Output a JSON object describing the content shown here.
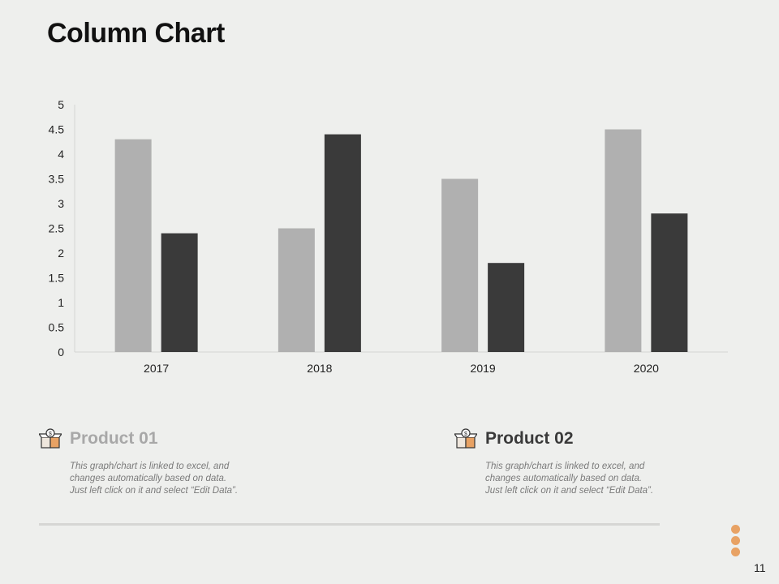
{
  "slide": {
    "title": "Column Chart",
    "page_number": "11"
  },
  "chart_data": {
    "type": "bar",
    "categories": [
      "2017",
      "2018",
      "2019",
      "2020"
    ],
    "series": [
      {
        "name": "Product 01",
        "values": [
          4.3,
          2.5,
          3.5,
          4.5
        ],
        "color": "#b0b0b0"
      },
      {
        "name": "Product 02",
        "values": [
          2.4,
          4.4,
          1.8,
          2.8
        ],
        "color": "#3a3a3a"
      }
    ],
    "yticks": [
      "0",
      "0.5",
      "1",
      "1.5",
      "2",
      "2.5",
      "3",
      "3.5",
      "4",
      "4.5",
      "5"
    ],
    "ylim": [
      0,
      5
    ],
    "title": "",
    "xlabel": "",
    "ylabel": "",
    "grid": false
  },
  "products": [
    {
      "name": "Product 01",
      "color": "#a8a8a8",
      "description": "This graph/chart is linked to excel, and\nchanges automatically based on data.\nJust left click on it and select “Edit Data”."
    },
    {
      "name": "Product 02",
      "color": "#3a3a3a",
      "description": "This graph/chart is linked to excel, and\nchanges automatically based on data.\nJust left click on it and select “Edit Data”."
    }
  ],
  "icons": {
    "product": "box-dollar-icon",
    "menu": "vertical-dots-icon"
  }
}
